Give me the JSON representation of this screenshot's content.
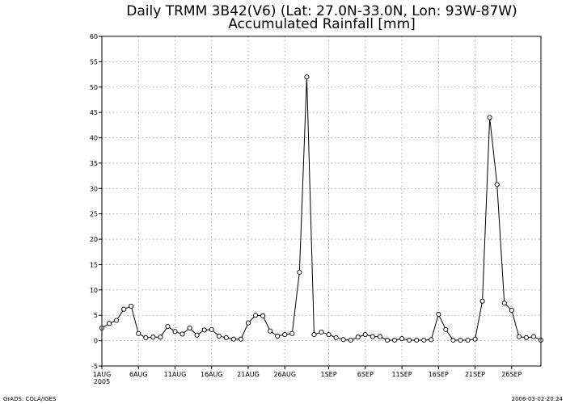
{
  "chart_data": {
    "type": "line",
    "title": "Daily TRMM 3B42(V6) (Lat: 27.0N-33.0N, Lon: 93W-87W)",
    "subtitle": "Accumulated Rainfall [mm]",
    "ylim": [
      -5,
      60
    ],
    "yticks": [
      -5,
      0,
      5,
      10,
      15,
      20,
      25,
      30,
      35,
      40,
      45,
      50,
      55,
      60
    ],
    "x_start": "2005-08-01",
    "x_end": "2005-09-30",
    "xtick_labels": [
      {
        "label": "1AUG",
        "sub": "2005",
        "date": "2005-08-01"
      },
      {
        "label": "6AUG",
        "date": "2005-08-06"
      },
      {
        "label": "11AUG",
        "date": "2005-08-11"
      },
      {
        "label": "16AUG",
        "date": "2005-08-16"
      },
      {
        "label": "21AUG",
        "date": "2005-08-21"
      },
      {
        "label": "26AUG",
        "date": "2005-08-26"
      },
      {
        "label": "1SEP",
        "date": "2005-09-01"
      },
      {
        "label": "6SEP",
        "date": "2005-09-06"
      },
      {
        "label": "11SEP",
        "date": "2005-09-11"
      },
      {
        "label": "16SEP",
        "date": "2005-09-16"
      },
      {
        "label": "21SEP",
        "date": "2005-09-21"
      },
      {
        "label": "26SEP",
        "date": "2005-09-26"
      }
    ],
    "grid": true,
    "series": [
      {
        "values": [
          2.5,
          3.4,
          4.0,
          6.2,
          6.8,
          1.4,
          0.6,
          0.7,
          0.7,
          2.8,
          1.8,
          1.3,
          2.5,
          1.1,
          2.1,
          2.2,
          0.9,
          0.6,
          0.3,
          0.3,
          3.5,
          5.0,
          4.9,
          1.9,
          0.9,
          1.2,
          1.4,
          13.5,
          52.0,
          1.2,
          1.7,
          1.2,
          0.6,
          0.2,
          0.1,
          0.7,
          1.2,
          0.8,
          0.8,
          0.1,
          0.1,
          0.4,
          0.1,
          0.1,
          0.1,
          0.2,
          5.2,
          2.2,
          0.1,
          0.1,
          0.1,
          0.3,
          7.8,
          44.0,
          30.8,
          7.4,
          6.0,
          0.8,
          0.6,
          0.8,
          0.1
        ]
      }
    ]
  },
  "footer": {
    "left": "GrADS: COLA/IGES",
    "right": "2006-03-02-20:24"
  }
}
